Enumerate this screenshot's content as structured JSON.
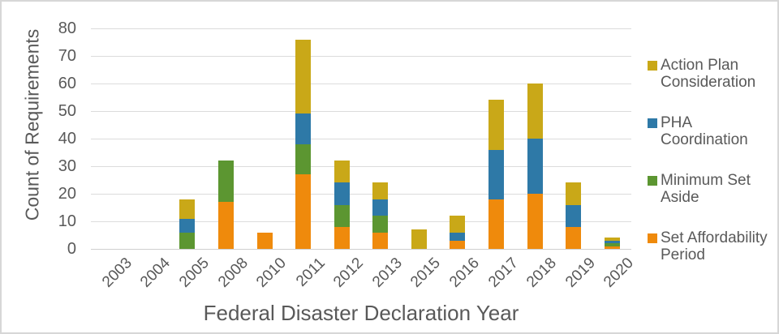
{
  "chart_data": {
    "type": "bar",
    "stacked": true,
    "title": "",
    "xlabel": "Federal Disaster Declaration Year",
    "ylabel": "Count of Requirements",
    "categories": [
      "2003",
      "2004",
      "2005",
      "2008",
      "2010",
      "2011",
      "2012",
      "2013",
      "2015",
      "2016",
      "2017",
      "2018",
      "2019",
      "2020"
    ],
    "series": [
      {
        "name": "Set Affordability Period",
        "color": "#EF8A0C",
        "values": [
          0,
          0,
          0,
          17,
          6,
          27,
          8,
          6,
          0,
          3,
          18,
          20,
          8,
          1
        ]
      },
      {
        "name": "Minimum Set Aside",
        "color": "#5C9631",
        "values": [
          0,
          0,
          6,
          15,
          0,
          11,
          8,
          6,
          0,
          0,
          0,
          0,
          0,
          1
        ]
      },
      {
        "name": "PHA Coordination",
        "color": "#2E79A7",
        "values": [
          0,
          0,
          5,
          0,
          0,
          11,
          8,
          6,
          0,
          3,
          18,
          20,
          8,
          1
        ]
      },
      {
        "name": "Action Plan Consideration",
        "color": "#C9A818",
        "values": [
          0,
          0,
          7,
          0,
          0,
          27,
          8,
          6,
          7,
          6,
          18,
          20,
          8,
          1
        ]
      }
    ],
    "ylim": [
      0,
      80
    ],
    "yticks": [
      0,
      10,
      20,
      30,
      40,
      50,
      60,
      70,
      80
    ],
    "grid": true,
    "legend_position": "right"
  },
  "legend": {
    "items": [
      {
        "label": "Action Plan Consideration",
        "color": "#C9A818"
      },
      {
        "label": "PHA Coordination",
        "color": "#2E79A7"
      },
      {
        "label": "Minimum Set Aside",
        "color": "#5C9631"
      },
      {
        "label": "Set Affordability Period",
        "color": "#EF8A0C"
      }
    ]
  }
}
